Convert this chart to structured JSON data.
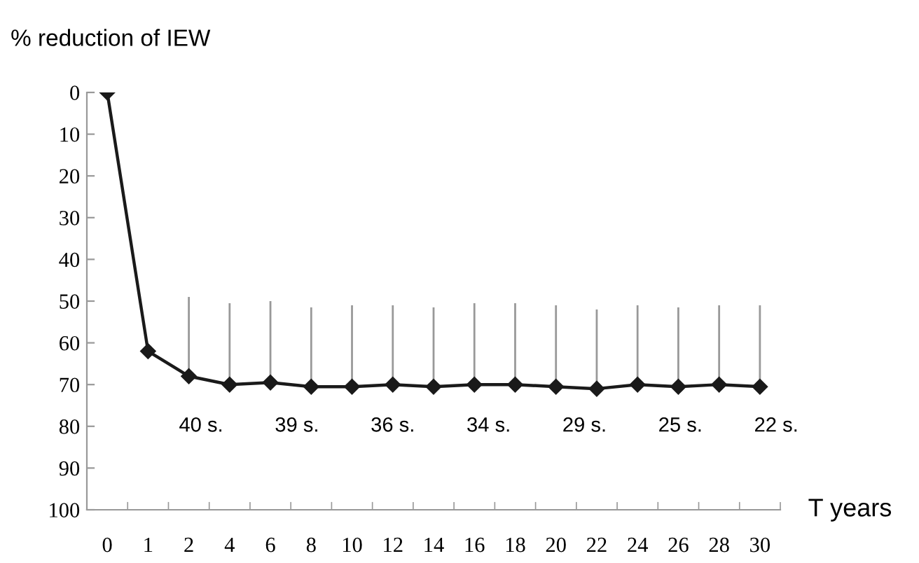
{
  "chart_data": {
    "type": "line",
    "ylabel": "% reduction of IEW",
    "xlabel": "T years",
    "categories": [
      "0",
      "1",
      "2",
      "4",
      "6",
      "8",
      "10",
      "12",
      "14",
      "16",
      "18",
      "20",
      "22",
      "24",
      "26",
      "28",
      "30"
    ],
    "series": [
      {
        "color": "#1a1a1a",
        "values": [
          0,
          62,
          68,
          70,
          69.5,
          70.5,
          70.5,
          70,
          70.5,
          70,
          70,
          70.5,
          71,
          70,
          70.5,
          70,
          70.5
        ],
        "errors": [
          null,
          null,
          [
            49,
            68
          ],
          [
            50.5,
            70
          ],
          [
            50,
            69.5
          ],
          [
            51.5,
            70.5
          ],
          [
            51,
            70.5
          ],
          [
            51,
            70
          ],
          [
            51.5,
            70.5
          ],
          [
            50.5,
            70
          ],
          [
            50.5,
            70
          ],
          [
            51,
            70.5
          ],
          [
            52,
            71
          ],
          [
            51,
            70
          ],
          [
            51.5,
            70.5
          ],
          [
            51,
            70
          ],
          [
            51,
            70.5
          ]
        ]
      }
    ],
    "ylim": [
      100,
      0
    ],
    "yticks": [
      0,
      10,
      20,
      30,
      40,
      50,
      60,
      70,
      80,
      90,
      100
    ],
    "marker": "diamond",
    "line_style": "solid",
    "grid": false,
    "legend": false,
    "annotations": [
      "40 s.",
      "39 s.",
      "36 s.",
      "34 s.",
      "29 s.",
      "25 s.",
      "22 s."
    ]
  }
}
